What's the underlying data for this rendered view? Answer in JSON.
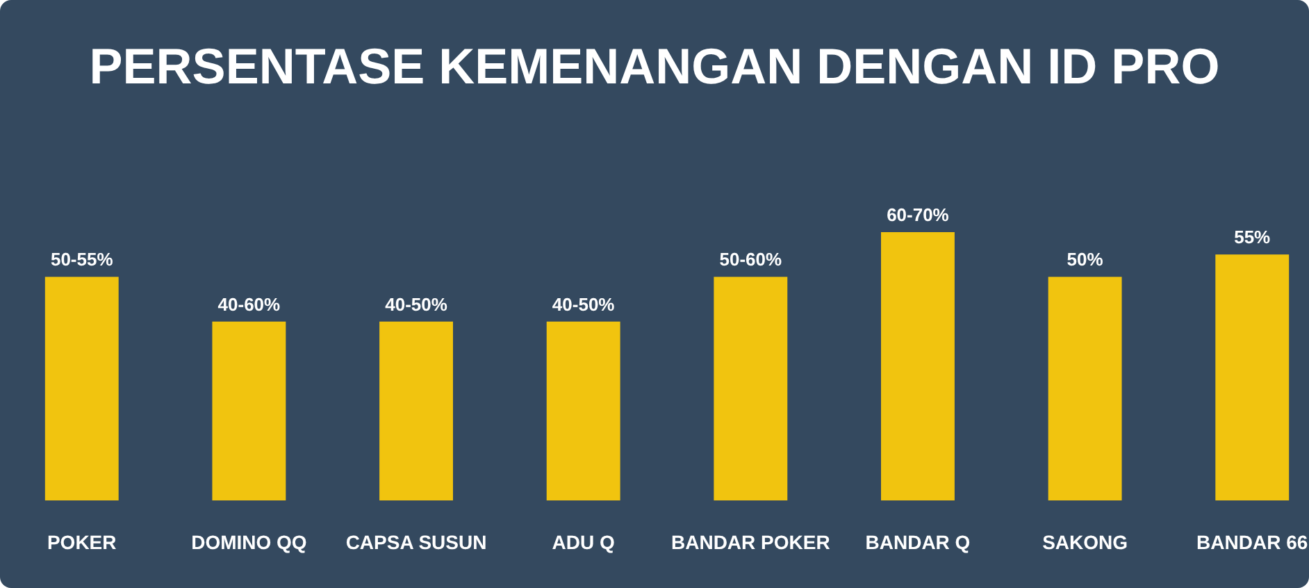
{
  "chart_data": {
    "type": "bar",
    "title": "PERSENTASE KEMENANGAN DENGAN ID PRO",
    "categories": [
      "POKER",
      "DOMINO QQ",
      "CAPSA SUSUN",
      "ADU Q",
      "BANDAR POKER",
      "BANDAR Q",
      "SAKONG",
      "BANDAR 66"
    ],
    "values": [
      50,
      40,
      40,
      40,
      50,
      60,
      50,
      55
    ],
    "value_labels": [
      "50-55%",
      "40-60%",
      "40-50%",
      "40-50%",
      "50-60%",
      "60-70%",
      "50%",
      "55%"
    ],
    "color": "#f1c40f"
  }
}
